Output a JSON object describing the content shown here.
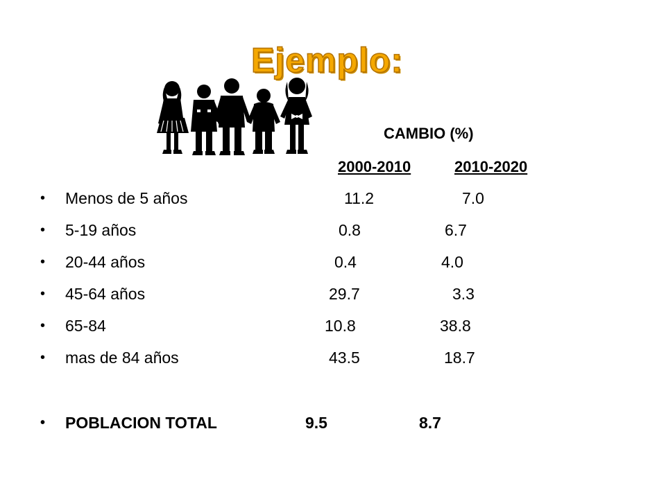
{
  "slide": {
    "title": "Ejemplo:",
    "title_color": "#f5a800",
    "header": {
      "cambio": "CAMBIO (%)",
      "period_1": "2000-2010",
      "period_2": "2010-2020"
    },
    "rows": [
      {
        "bullet": "•",
        "label": "Menos de 5 años",
        "v1": "11.2",
        "v2": "7.0"
      },
      {
        "bullet": "•",
        "label": "5-19 años",
        "v1": "0.8",
        "v2": "6.7"
      },
      {
        "bullet": "•",
        "label": "20-44 años",
        "v1": "0.4",
        "v2": "4.0"
      },
      {
        "bullet": "•",
        "label": "45-64 años",
        "v1": "29.7",
        "v2": "3.3"
      },
      {
        "bullet": "•",
        "label": "65-84",
        "v1": "10.8",
        "v2": "38.8"
      },
      {
        "bullet": "•",
        "label": "mas de 84 años",
        "v1": "43.5",
        "v2": "18.7"
      }
    ],
    "total": {
      "bullet": "•",
      "label": "POBLACION TOTAL",
      "v1": "9.5",
      "v2": "8.7"
    },
    "clipart": "children-holding-hands-silhouette"
  }
}
